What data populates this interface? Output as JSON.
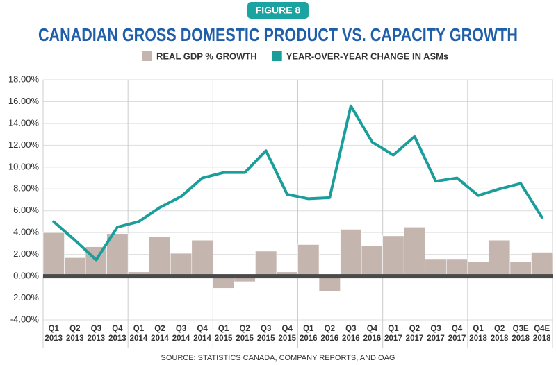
{
  "chart_data": {
    "type": "combo",
    "badge": "FIGURE 8",
    "title": "CANADIAN GROSS DOMESTIC PRODUCT VS. CAPACITY GROWTH",
    "source": "SOURCE: STATISTICS CANADA, COMPANY REPORTS, AND OAG",
    "categories": [
      "Q1 2013",
      "Q2 2013",
      "Q3 2013",
      "Q4 2013",
      "Q1 2014",
      "Q2 2014",
      "Q3 2014",
      "Q4 2014",
      "Q1 2015",
      "Q2 2015",
      "Q3 2015",
      "Q4 2015",
      "Q1 2016",
      "Q2 2016",
      "Q3 2016",
      "Q4 2016",
      "Q1 2017",
      "Q2 2017",
      "Q3 2017",
      "Q4 2017",
      "Q1 2018",
      "Q2 2018",
      "Q3E 2018",
      "Q4E 2018"
    ],
    "series": [
      {
        "name": "REAL GDP % GROWTH",
        "type": "bar",
        "color": "#c4b5af",
        "values": [
          4.0,
          1.7,
          2.7,
          3.9,
          0.4,
          3.6,
          2.1,
          3.3,
          -1.1,
          -0.5,
          2.3,
          0.4,
          2.9,
          -1.4,
          4.3,
          2.8,
          3.7,
          4.5,
          1.6,
          1.6,
          1.3,
          3.3,
          1.3,
          2.2
        ]
      },
      {
        "name": "YEAR-OVER-YEAR CHANGE IN ASMs",
        "type": "line",
        "color": "#1a9e9c",
        "values": [
          5.0,
          3.3,
          1.5,
          4.5,
          5.0,
          6.3,
          7.3,
          9.0,
          9.5,
          9.5,
          11.5,
          7.5,
          7.1,
          7.2,
          15.6,
          12.3,
          11.1,
          12.8,
          8.7,
          9.0,
          7.4,
          8.0,
          8.5,
          5.4
        ]
      }
    ],
    "ylim": [
      -4,
      18
    ],
    "yticks": [
      {
        "value": -4,
        "label": "-4.00%"
      },
      {
        "value": -2,
        "label": "-2.00%"
      },
      {
        "value": 0,
        "label": "0.00%"
      },
      {
        "value": 2,
        "label": "2.00%"
      },
      {
        "value": 4,
        "label": "4.00%"
      },
      {
        "value": 6,
        "label": "6.00%"
      },
      {
        "value": 8,
        "label": "8.00%"
      },
      {
        "value": 10,
        "label": "10.00%"
      },
      {
        "value": 12,
        "label": "12.00%"
      },
      {
        "value": 14,
        "label": "14.00%"
      },
      {
        "value": 16,
        "label": "16.00%"
      },
      {
        "value": 18,
        "label": "18.00%"
      }
    ],
    "grid": true
  }
}
